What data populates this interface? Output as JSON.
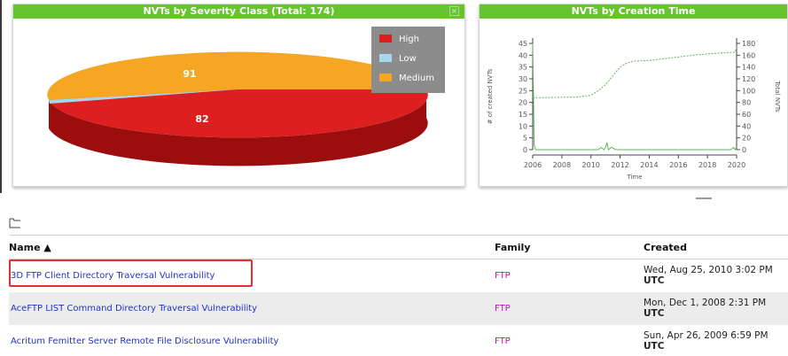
{
  "pie_chart": {
    "title": "NVTs by Severity Class (Total: 174)",
    "close_symbol": "×",
    "legend": [
      {
        "label": "High",
        "color": "#dd1f1f"
      },
      {
        "label": "Low",
        "color": "#a6d7ec"
      },
      {
        "label": "Medium",
        "color": "#f5a623"
      }
    ],
    "chart_data": {
      "type": "pie",
      "categories": [
        "High",
        "Low",
        "Medium"
      ],
      "values": [
        82,
        1,
        91
      ],
      "labels_shown": [
        "82",
        "91"
      ]
    }
  },
  "time_chart": {
    "title": "NVTs by Creation Time",
    "chart_data": {
      "type": "line",
      "xlabel": "Time",
      "ylabel_left": "# of created NVTs",
      "ylabel_right": "Total NVTs",
      "x_ticks": [
        "2006",
        "2008",
        "2010",
        "2012",
        "2014",
        "2016",
        "2018",
        "2020"
      ],
      "y_left_ticks": [
        "0",
        "5",
        "10",
        "15",
        "20",
        "25",
        "30",
        "35",
        "40",
        "45"
      ],
      "y_right_ticks": [
        "0",
        "20",
        "40",
        "60",
        "80",
        "100",
        "120",
        "140",
        "160",
        "180"
      ],
      "xlim": [
        2006,
        2020
      ],
      "ylim_left": [
        0,
        45
      ],
      "ylim_right": [
        0,
        180
      ],
      "series": [
        {
          "axis": "left",
          "x": [
            2006.0,
            2006.1,
            2006.2,
            2010.5,
            2010.7,
            2010.9,
            2011.0,
            2011.1,
            2011.2,
            2011.4,
            2011.7,
            2019.6,
            2019.8,
            2019.9,
            2020.0
          ],
          "y": [
            45,
            2,
            0,
            0,
            1,
            0,
            1,
            3,
            0,
            1,
            0,
            0,
            1,
            0,
            1
          ]
        },
        {
          "axis": "right",
          "x": [
            2006.0,
            2009.0,
            2010.0,
            2010.5,
            2011.0,
            2011.5,
            2012.0,
            2012.5,
            2013.0,
            2014.0,
            2015.0,
            2016.0,
            2017.0,
            2018.0,
            2019.0,
            2019.9,
            2020.0
          ],
          "y": [
            88,
            89,
            92,
            100,
            110,
            125,
            140,
            147,
            150,
            151,
            154,
            157,
            160,
            162,
            164,
            165,
            174
          ]
        }
      ]
    }
  },
  "table": {
    "headers": {
      "name": "Name ▲",
      "family": "Family",
      "created": "Created"
    },
    "rows": [
      {
        "name": "3D FTP Client Directory Traversal Vulnerability",
        "family": "FTP",
        "created_1": "Wed, Aug 25, 2010 3:02 PM",
        "created_2": "UTC"
      },
      {
        "name": "AceFTP LIST Command Directory Traversal Vulnerability",
        "family": "FTP",
        "created_1": "Mon, Dec 1, 2008 2:31 PM",
        "created_2": "UTC"
      },
      {
        "name": "Acritum Femitter Server Remote File Disclosure Vulnerability",
        "family": "FTP",
        "created_1": "Sun, Apr 26, 2009 6:59 PM",
        "created_2": "UTC"
      }
    ]
  }
}
